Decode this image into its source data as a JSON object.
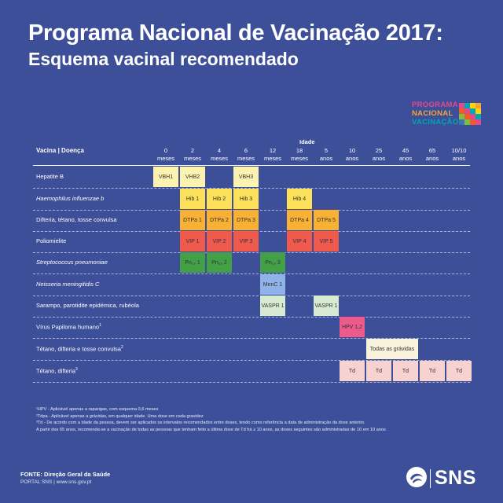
{
  "title_line1": "Programa Nacional de Vacinação 2017:",
  "title_line2": "Esquema vacinal recomendado",
  "logo": {
    "line1": "PROGRAMA",
    "line2": "NACIONAL",
    "line3": "VACINAÇÃO",
    "colors": [
      "#e24a8d",
      "#f2a33a",
      "#7ac143",
      "#00a6b4",
      "#8e4fa0",
      "#f15a29",
      "#ffd200",
      "#3f72b5"
    ]
  },
  "table": {
    "idade_label": "Idade",
    "vaccine_header": "Vacina | Doença",
    "ages": [
      {
        "n": "0",
        "u": "meses"
      },
      {
        "n": "2",
        "u": "meses"
      },
      {
        "n": "4",
        "u": "meses"
      },
      {
        "n": "6",
        "u": "meses"
      },
      {
        "n": "12",
        "u": "meses"
      },
      {
        "n": "18",
        "u": "meses"
      },
      {
        "n": "5",
        "u": "anos"
      },
      {
        "n": "10",
        "u": "anos"
      },
      {
        "n": "25",
        "u": "anos"
      },
      {
        "n": "45",
        "u": "anos"
      },
      {
        "n": "65",
        "u": "anos"
      },
      {
        "n": "10/10",
        "u": "anos"
      }
    ],
    "rows": [
      {
        "label": "Hepatite B",
        "sup": "",
        "italic": false
      },
      {
        "label": "Haemophilus influenzae b",
        "sup": "",
        "italic": true
      },
      {
        "label": "Difteria, tétano, tosse convulsa",
        "sup": "",
        "italic": false
      },
      {
        "label": "Poliomielite",
        "sup": "",
        "italic": false
      },
      {
        "label": "Streptococcus pneumoniae",
        "sup": "",
        "italic": true
      },
      {
        "label": "Neisseria meningitidis C",
        "sup": "",
        "italic": true
      },
      {
        "label": "Sarampo, parotidite epidémica, rubéola",
        "sup": "",
        "italic": false
      },
      {
        "label": "Vírus Papiloma humano",
        "sup": "1",
        "italic": false
      },
      {
        "label": "Tétano, difteria e tosse convulsa",
        "sup": "2",
        "italic": false
      },
      {
        "label": "Tétano, difteria",
        "sup": "3",
        "italic": false
      }
    ],
    "cells": [
      {
        "row": 0,
        "col": 0,
        "span": 1,
        "text": "VBH1",
        "color": "#fcf3b0"
      },
      {
        "row": 0,
        "col": 1,
        "span": 1,
        "text": "VHB2",
        "color": "#fcf3b0"
      },
      {
        "row": 0,
        "col": 3,
        "span": 1,
        "text": "VBH3",
        "color": "#fcf3b0"
      },
      {
        "row": 1,
        "col": 1,
        "span": 1,
        "text": "Hib 1",
        "color": "#fde15a"
      },
      {
        "row": 1,
        "col": 2,
        "span": 1,
        "text": "Hib 2",
        "color": "#fde15a"
      },
      {
        "row": 1,
        "col": 3,
        "span": 1,
        "text": "Hib 3",
        "color": "#fde15a"
      },
      {
        "row": 1,
        "col": 5,
        "span": 1,
        "text": "Hib 4",
        "color": "#fde15a"
      },
      {
        "row": 2,
        "col": 1,
        "span": 1,
        "text": "DTPa 1",
        "color": "#f8b133"
      },
      {
        "row": 2,
        "col": 2,
        "span": 1,
        "text": "DTPa 2",
        "color": "#f8b133"
      },
      {
        "row": 2,
        "col": 3,
        "span": 1,
        "text": "DTPa 3",
        "color": "#f8b133"
      },
      {
        "row": 2,
        "col": 5,
        "span": 1,
        "text": "DTPa 4",
        "color": "#f8b133"
      },
      {
        "row": 2,
        "col": 6,
        "span": 1,
        "text": "DTPa 5",
        "color": "#f8b133"
      },
      {
        "row": 3,
        "col": 1,
        "span": 1,
        "text": "VIP 1",
        "color": "#ef5a4f"
      },
      {
        "row": 3,
        "col": 2,
        "span": 1,
        "text": "VIP 2",
        "color": "#ef5a4f"
      },
      {
        "row": 3,
        "col": 3,
        "span": 1,
        "text": "VIP 3",
        "color": "#ef5a4f"
      },
      {
        "row": 3,
        "col": 5,
        "span": 1,
        "text": "VIP 4",
        "color": "#ef5a4f"
      },
      {
        "row": 3,
        "col": 6,
        "span": 1,
        "text": "VIP 5",
        "color": "#ef5a4f"
      },
      {
        "row": 4,
        "col": 1,
        "span": 1,
        "text": "Pn₁₃ 1",
        "color": "#43a047"
      },
      {
        "row": 4,
        "col": 2,
        "span": 1,
        "text": "Pn₁₃ 2",
        "color": "#43a047"
      },
      {
        "row": 4,
        "col": 4,
        "span": 1,
        "text": "Pn₁₃ 3",
        "color": "#43a047"
      },
      {
        "row": 5,
        "col": 4,
        "span": 1,
        "text": "MenC 1",
        "color": "#8fb2e8"
      },
      {
        "row": 6,
        "col": 4,
        "span": 1,
        "text": "VASPR 1",
        "color": "#d6ebd2"
      },
      {
        "row": 6,
        "col": 6,
        "span": 1,
        "text": "VASPR 1",
        "color": "#d6ebd2"
      },
      {
        "row": 7,
        "col": 7,
        "span": 1,
        "text": "HPV 1,2",
        "color": "#ec5b8b"
      },
      {
        "row": 8,
        "col": 8,
        "span": 2,
        "text": "Todas as grávidas",
        "color": "#f9f3dc"
      },
      {
        "row": 9,
        "col": 7,
        "span": 1,
        "text": "Td",
        "color": "#f8d1d1"
      },
      {
        "row": 9,
        "col": 8,
        "span": 1,
        "text": "Td",
        "color": "#f8d1d1"
      },
      {
        "row": 9,
        "col": 9,
        "span": 1,
        "text": "Td",
        "color": "#f8d1d1"
      },
      {
        "row": 9,
        "col": 10,
        "span": 1,
        "text": "Td",
        "color": "#f8d1d1"
      },
      {
        "row": 9,
        "col": 11,
        "span": 1,
        "text": "Td",
        "color": "#f8d1d1"
      }
    ]
  },
  "notes": [
    "¹HPV - Aplicável apenas a raparigas, com esquema 0,6 meses",
    "²Tdpa - Aplicável apenas a grávidas, em qualquer idade. Uma dose em cada gravidez",
    "³Td - De acordo com a idade da pessoa, devem ser aplicados os intervalos recomendados entre doses, tendo como referência a data de administração da dose anterior.",
    "A partir dos 65 anos, recomenda-se a vacinação de todas as pessoas que tenham feito a última dose de Td há ≥ 10 anos, as doses seguintes são administradas de 10 em 10 anos"
  ],
  "fonte": "FONTE: Direção Geral da Saúde",
  "portal": "PORTAL SNS | www.sns.gov.pt",
  "sns": "SNS"
}
